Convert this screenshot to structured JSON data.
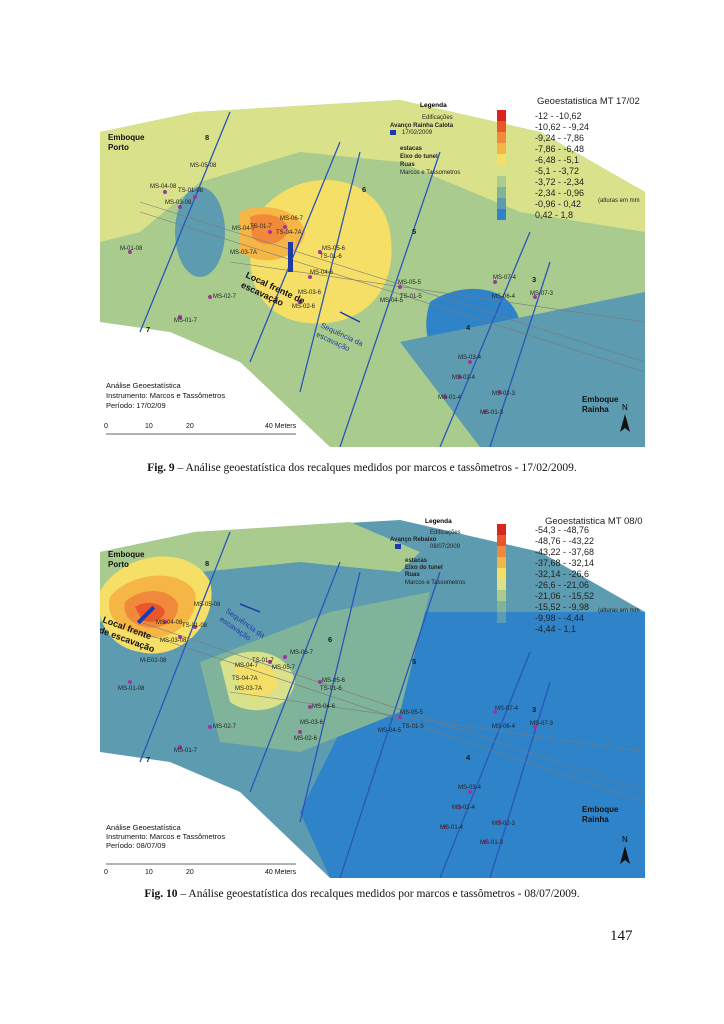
{
  "figures": [
    {
      "id": "fig9",
      "caption_label": "Fig. 9",
      "caption_text": " – Análise geoestatística dos recalques medidos por marcos e tassômetros - 17/02/2009.",
      "legend": {
        "title": "Legenda",
        "items": [
          "Edificações",
          "Avanço Rainha Calota",
          "17/02/2009",
          "estacas",
          "Eixo do tunel",
          "Ruas",
          "Marcos e Tassometros"
        ]
      },
      "scale": {
        "title": "Geoestatistica MT 17/02",
        "unit_note": "(alturas em mm",
        "classes": [
          "-12 - -10,62",
          "-10,62 - -9,24",
          "-9,24 - -7,86",
          "-7,86 - -6,48",
          "-6,48 - -5,1",
          "-5,1 - -3,72",
          "-3,72 - -2,34",
          "-2,34 - -0,96",
          "-0,96 - 0,42",
          "0,42 - 1,8"
        ],
        "colors": [
          "#d9261c",
          "#e8562a",
          "#f08a3a",
          "#f5b646",
          "#f6df66",
          "#d9e18a",
          "#a9cc8e",
          "#7fb39a",
          "#5d9bb0",
          "#2f83c9"
        ]
      },
      "labels": {
        "emboque_porto": [
          "Emboque",
          "Porto"
        ],
        "emboque_rainha": [
          "Emboque",
          "Rainha"
        ],
        "local_frente": [
          "Local frente de",
          "escavação"
        ],
        "sequencia": [
          "Sequência da",
          "escavação"
        ],
        "analise": [
          "Análise Geoestatística",
          "Instrumento: Marcos e Tassômetros",
          "Período: 17/02/09"
        ]
      },
      "stakes": [
        "8",
        "7",
        "6",
        "5",
        "4",
        "3"
      ],
      "instruments": [
        "MS-05-08",
        "MS-04-08",
        "TS-01-08",
        "MS-03-08",
        "M-01-08",
        "MS-06-7",
        "MS-04-7",
        "TS-01-7",
        "MS-05-7",
        "TS-04-7A",
        "MS-03-7A",
        "MS-05-6",
        "TS-01-6",
        "MS-04-6",
        "MS-03-6",
        "MS-02-6",
        "MS-02-7",
        "MS-01-7",
        "MS-05-5",
        "TS-01-5",
        "MS-04-5",
        "MS-07-4",
        "MS-06-4",
        "MS-07-3",
        "MS-03-4",
        "MS-02-4",
        "MS-01-4",
        "MS-02-3",
        "MS-01-3"
      ],
      "scalebar": [
        "0",
        "10",
        "20",
        "40 Meters"
      ],
      "north": "N"
    },
    {
      "id": "fig10",
      "caption_label": "Fig. 10",
      "caption_text": " – Análise geoestatística dos recalques medidos por marcos e tassômetros - 08/07/2009.",
      "legend": {
        "title": "Legenda",
        "items": [
          "Edificações",
          "Avanço Rebaixo",
          "08/07/2009",
          "estacas",
          "Eixo do tunel",
          "Ruas",
          "Marcos e Tassometros"
        ]
      },
      "scale": {
        "title": "Geoestatistica MT 08/0",
        "unit_note": "(alturas em mm",
        "classes": [
          "-54,3 - -48,76",
          "-48,76 - -43,22",
          "-43,22 - -37,68",
          "-37,68 - -32,14",
          "-32,14 - -26,6",
          "-26,6 - -21,06",
          "-21,06 - -15,52",
          "-15,52 - -9,98",
          "-9,98 - -4,44",
          "-4,44 - 1,1"
        ],
        "colors": [
          "#d9261c",
          "#e8562a",
          "#f08a3a",
          "#f5b646",
          "#f6df66",
          "#d9e18a",
          "#a9cc8e",
          "#7fb39a",
          "#5d9bb0",
          "#2f83c9"
        ]
      },
      "labels": {
        "emboque_porto": [
          "Emboque",
          "Porto"
        ],
        "emboque_rainha": [
          "Emboque",
          "Rainha"
        ],
        "local_frente": [
          "Local frente",
          "de escavação"
        ],
        "sequencia": [
          "Sequência da",
          "escavação"
        ],
        "analise": [
          "Análise Geoestatística",
          "Instrumento: Marcos e Tassômetros",
          "Período: 08/07/09"
        ]
      },
      "stakes": [
        "8",
        "7",
        "6",
        "5",
        "4",
        "3"
      ],
      "instruments": [
        "MS-05-08",
        "MS-04-08",
        "TS-01-08",
        "MS-03-08",
        "M-E02-08",
        "MS-01-08",
        "MS-06-7",
        "MS-04-7",
        "TS-01-7",
        "MS-05-7",
        "TS-04-7A",
        "MS-03-7A",
        "MS-05-6",
        "TS-01-6",
        "MS-04-6",
        "MS-03-6",
        "MS-02-6",
        "MS-02-7",
        "MS-01-7",
        "MS-05-5",
        "TS-01-5",
        "MS-04-5",
        "MS-07-4",
        "MS-06-4",
        "MS-07-3",
        "MS-03-4",
        "MS-02-4",
        "MS-01-4",
        "MS-02-3",
        "MS-01-3"
      ],
      "scalebar": [
        "0",
        "10",
        "20",
        "40 Meters"
      ],
      "north": "N"
    }
  ],
  "page_number": "147"
}
